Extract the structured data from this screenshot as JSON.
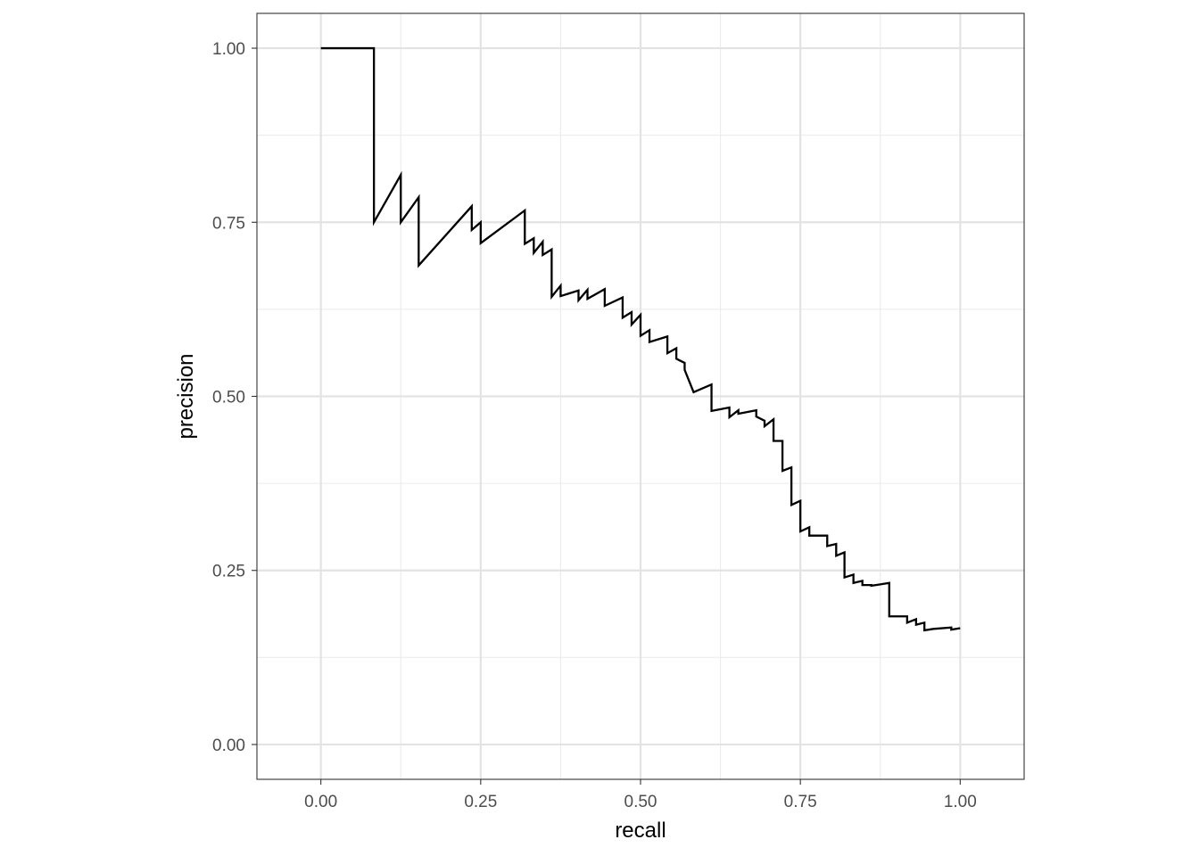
{
  "chart_data": {
    "type": "line",
    "title": "",
    "xlabel": "recall",
    "ylabel": "precision",
    "xlim": [
      -0.1,
      1.1
    ],
    "ylim": [
      -0.05,
      1.05
    ],
    "x_ticks": [
      0,
      0.25,
      0.5,
      0.75,
      1
    ],
    "x_tick_labels": [
      "0.00",
      "0.25",
      "0.50",
      "0.75",
      "1.00"
    ],
    "y_ticks": [
      0,
      0.25,
      0.5,
      0.75,
      1
    ],
    "y_tick_labels": [
      "0.00",
      "0.25",
      "0.50",
      "0.75",
      "1.00"
    ],
    "grid": true,
    "legend": "none",
    "line_color": "#000000",
    "series": [
      {
        "x": [
          0,
          0.083,
          0.083,
          0.125,
          0.125,
          0.153,
          0.153,
          0.236,
          0.236,
          0.25,
          0.25,
          0.319,
          0.319,
          0.333,
          0.333,
          0.347,
          0.347,
          0.361,
          0.361,
          0.375,
          0.375,
          0.403,
          0.403,
          0.417,
          0.417,
          0.444,
          0.444,
          0.472,
          0.472,
          0.486,
          0.486,
          0.5,
          0.5,
          0.514,
          0.514,
          0.542,
          0.542,
          0.556,
          0.556,
          0.569,
          0.569,
          0.583,
          0.583,
          0.611,
          0.611,
          0.639,
          0.639,
          0.653,
          0.653,
          0.681,
          0.681,
          0.694,
          0.694,
          0.708,
          0.708,
          0.722,
          0.722,
          0.736,
          0.736,
          0.75,
          0.75,
          0.764,
          0.764,
          0.792,
          0.792,
          0.806,
          0.806,
          0.819,
          0.819,
          0.833,
          0.833,
          0.847,
          0.847,
          0.861,
          0.861,
          0.875,
          0.875,
          0.889,
          0.889,
          0.917,
          0.917,
          0.931,
          0.931,
          0.944,
          0.944,
          0.958,
          0.958,
          0.986,
          0.986,
          1.0
        ],
        "y": [
          1.0,
          1.0,
          0.75,
          0.818,
          0.75,
          0.786,
          0.688,
          0.773,
          0.739,
          0.75,
          0.72,
          0.767,
          0.719,
          0.727,
          0.706,
          0.722,
          0.703,
          0.711,
          0.643,
          0.659,
          0.644,
          0.652,
          0.638,
          0.653,
          0.64,
          0.654,
          0.63,
          0.642,
          0.613,
          0.621,
          0.603,
          0.617,
          0.587,
          0.595,
          0.578,
          0.586,
          0.562,
          0.569,
          0.554,
          0.548,
          0.538,
          0.506,
          0.506,
          0.517,
          0.479,
          0.484,
          0.47,
          0.48,
          0.475,
          0.48,
          0.471,
          0.465,
          0.457,
          0.467,
          0.436,
          0.436,
          0.393,
          0.398,
          0.344,
          0.35,
          0.306,
          0.312,
          0.3,
          0.3,
          0.285,
          0.288,
          0.271,
          0.276,
          0.24,
          0.244,
          0.232,
          0.235,
          0.229,
          0.229,
          0.228,
          0.23,
          0.23,
          0.232,
          0.184,
          0.184,
          0.175,
          0.18,
          0.172,
          0.175,
          0.164,
          0.166,
          0.166,
          0.168,
          0.165,
          0.167
        ]
      }
    ]
  }
}
